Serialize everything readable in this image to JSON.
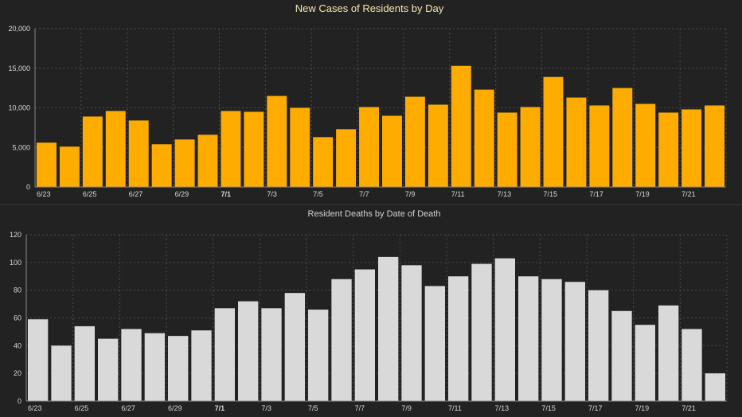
{
  "chart_data": [
    {
      "type": "bar",
      "title": "New Cases of Residents by Day",
      "xlabel": "",
      "ylabel": "",
      "ylim": [
        0,
        20000
      ],
      "yticks": [
        "0",
        "5,000",
        "10,000",
        "15,000",
        "20,000"
      ],
      "ytick_values": [
        0,
        5000,
        10000,
        15000,
        20000
      ],
      "categories": [
        "6/23",
        "6/24",
        "6/25",
        "6/26",
        "6/27",
        "6/28",
        "6/29",
        "6/30",
        "7/1",
        "7/2",
        "7/3",
        "7/4",
        "7/5",
        "7/6",
        "7/7",
        "7/8",
        "7/9",
        "7/10",
        "7/11",
        "7/12",
        "7/13",
        "7/14",
        "7/15",
        "7/16",
        "7/17",
        "7/18",
        "7/19",
        "7/20",
        "7/21",
        "7/22"
      ],
      "xtick_labels": [
        "6/23",
        "6/25",
        "6/27",
        "6/29",
        "7/1",
        "7/3",
        "7/5",
        "7/7",
        "7/9",
        "7/11",
        "7/13",
        "7/15",
        "7/17",
        "7/19",
        "7/21"
      ],
      "values": [
        5600,
        5100,
        8900,
        9600,
        8400,
        5400,
        6000,
        6600,
        9600,
        9500,
        11500,
        10000,
        6300,
        7300,
        10100,
        9000,
        11400,
        10400,
        15300,
        12300,
        9400,
        10100,
        13900,
        11300,
        10300,
        12500,
        10500,
        9400,
        9800,
        10300
      ],
      "bar_color": "#ffac00",
      "grid": true
    },
    {
      "type": "bar",
      "title": "Resident Deaths by Date of Death",
      "xlabel": "",
      "ylabel": "",
      "ylim": [
        0,
        120
      ],
      "yticks": [
        "0",
        "20",
        "40",
        "60",
        "80",
        "100",
        "120"
      ],
      "ytick_values": [
        0,
        20,
        40,
        60,
        80,
        100,
        120
      ],
      "categories": [
        "6/23",
        "6/24",
        "6/25",
        "6/26",
        "6/27",
        "6/28",
        "6/29",
        "6/30",
        "7/1",
        "7/2",
        "7/3",
        "7/4",
        "7/5",
        "7/6",
        "7/7",
        "7/8",
        "7/9",
        "7/10",
        "7/11",
        "7/12",
        "7/13",
        "7/14",
        "7/15",
        "7/16",
        "7/17",
        "7/18",
        "7/19",
        "7/20",
        "7/21",
        "7/22"
      ],
      "xtick_labels": [
        "6/23",
        "6/25",
        "6/27",
        "6/29",
        "7/1",
        "7/3",
        "7/5",
        "7/7",
        "7/9",
        "7/11",
        "7/13",
        "7/15",
        "7/17",
        "7/19",
        "7/21"
      ],
      "values": [
        59,
        40,
        54,
        45,
        52,
        49,
        47,
        51,
        67,
        72,
        67,
        78,
        66,
        88,
        95,
        104,
        98,
        83,
        90,
        99,
        103,
        90,
        88,
        86,
        80,
        65,
        55,
        69,
        52,
        20
      ],
      "bar_color": "#d9d9d9",
      "grid": true
    }
  ],
  "colors": {
    "background": "#222222",
    "title_top": "#f2e8b0",
    "title_bottom": "#d0d0d0",
    "tick_text": "#d8d8d8"
  }
}
